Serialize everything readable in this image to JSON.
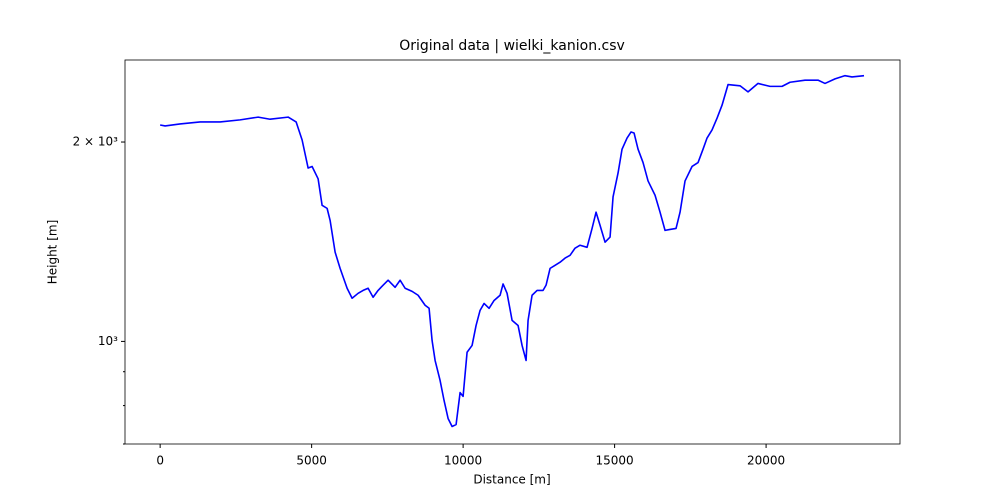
{
  "chart_data": {
    "type": "line",
    "title": "Original data | wielki_kanion.csv",
    "x_label": "Distance [m]",
    "y_label": "Height [m]",
    "log_y": true,
    "grid": false,
    "xlim": [
      -1160,
      24420
    ],
    "ylim": [
      700,
      2660
    ],
    "xticks": [
      0,
      5000,
      10000,
      15000,
      20000
    ],
    "yticks": [
      {
        "value": 1000,
        "label": "10³"
      },
      {
        "value": 2000,
        "label": "2 × 10³"
      }
    ],
    "yminorticks": [
      700,
      800,
      900
    ],
    "x": [
      0,
      165,
      660,
      1320,
      1980,
      2640,
      3234,
      3630,
      4224,
      4488,
      4686,
      4884,
      5016,
      5214,
      5346,
      5511,
      5610,
      5775,
      5940,
      6171,
      6336,
      6534,
      6699,
      6864,
      7029,
      7194,
      7359,
      7524,
      7755,
      7920,
      8085,
      8316,
      8514,
      8745,
      8877,
      8976,
      9075,
      9240,
      9372,
      9504,
      9636,
      9768,
      9900,
      9999,
      10131,
      10296,
      10428,
      10560,
      10692,
      10857,
      11022,
      11220,
      11319,
      11451,
      11616,
      11814,
      11946,
      12078,
      12144,
      12276,
      12441,
      12639,
      12738,
      12870,
      13035,
      13200,
      13365,
      13530,
      13695,
      13860,
      14091,
      14256,
      14388,
      14520,
      14685,
      14850,
      14949,
      15114,
      15246,
      15411,
      15543,
      15642,
      15774,
      15939,
      16104,
      16335,
      16500,
      16665,
      16830,
      17028,
      17160,
      17325,
      17556,
      17754,
      17919,
      18051,
      18216,
      18381,
      18546,
      18744,
      19140,
      19404,
      19734,
      20130,
      20526,
      20790,
      21285,
      21714,
      21945,
      22275,
      22605,
      22836,
      23232
    ],
    "series": [
      {
        "name": "Height",
        "color": "#0000ff",
        "values": [
          2122,
          2115,
          2130,
          2145,
          2145,
          2160,
          2181,
          2165,
          2181,
          2145,
          2014,
          1827,
          1837,
          1760,
          1605,
          1588,
          1523,
          1364,
          1289,
          1203,
          1162,
          1182,
          1194,
          1203,
          1166,
          1194,
          1216,
          1237,
          1207,
          1237,
          1203,
          1190,
          1174,
          1134,
          1122,
          1003,
          936,
          873,
          814,
          765,
          744,
          749,
          837,
          826,
          963,
          986,
          1057,
          1114,
          1141,
          1122,
          1153,
          1174,
          1221,
          1182,
          1076,
          1057,
          986,
          936,
          1076,
          1174,
          1194,
          1194,
          1216,
          1289,
          1303,
          1317,
          1336,
          1349,
          1383,
          1397,
          1387,
          1481,
          1567,
          1497,
          1412,
          1437,
          1653,
          1796,
          1951,
          2028,
          2071,
          2064,
          1951,
          1862,
          1747,
          1662,
          1567,
          1471,
          1476,
          1481,
          1567,
          1747,
          1837,
          1862,
          1951,
          2028,
          2086,
          2173,
          2273,
          2442,
          2432,
          2381,
          2452,
          2427,
          2427,
          2462,
          2480,
          2480,
          2452,
          2491,
          2519,
          2508,
          2519
        ]
      }
    ]
  }
}
